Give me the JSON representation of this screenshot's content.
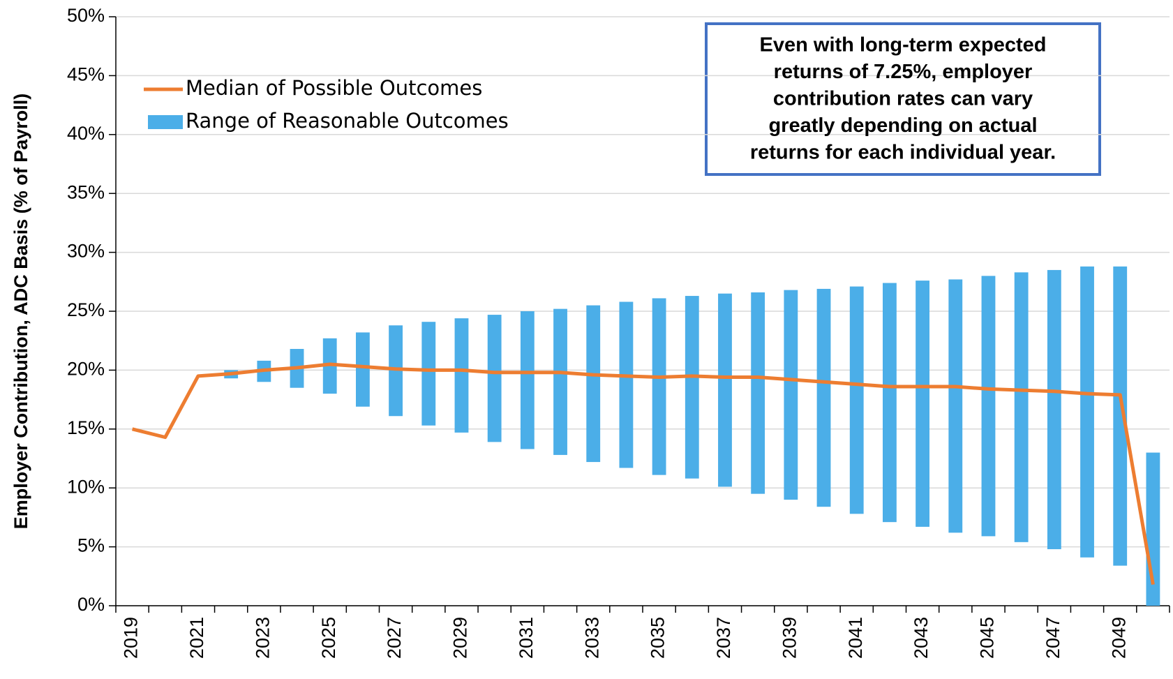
{
  "chart_data": {
    "type": "combo",
    "y_label": "Employer Contribution, ADC Basis (% of Payroll)",
    "annotation": [
      "Even with long-term expected",
      "returns of 7.25%, employer",
      "contribution rates can vary",
      "greatly depending on actual",
      "returns for each individual year."
    ],
    "categories": [
      "2019",
      null,
      "2021",
      null,
      "2023",
      null,
      "2025",
      null,
      "2027",
      null,
      "2029",
      null,
      "2031",
      null,
      "2033",
      null,
      "2035",
      null,
      "2037",
      null,
      "2039",
      null,
      "2041",
      null,
      "2043",
      null,
      "2045",
      null,
      "2047",
      null,
      "2049",
      null
    ],
    "ylim": [
      0,
      50
    ],
    "yticks": [
      {
        "value": 0,
        "label": "0%"
      },
      {
        "value": 5,
        "label": "5%"
      },
      {
        "value": 10,
        "label": "10%"
      },
      {
        "value": 15,
        "label": "15%"
      },
      {
        "value": 20,
        "label": "20%"
      },
      {
        "value": 25,
        "label": "25%"
      },
      {
        "value": 30,
        "label": "30%"
      },
      {
        "value": 35,
        "label": "35%"
      },
      {
        "value": 40,
        "label": "40%"
      },
      {
        "value": 45,
        "label": "45%"
      },
      {
        "value": 50,
        "label": "50%"
      }
    ],
    "grid": true,
    "series": [
      {
        "name": "Median of Possible Outcomes",
        "type": "line",
        "color": "#ed7d31",
        "values": [
          15.0,
          14.3,
          19.5,
          19.7,
          20.0,
          20.2,
          20.5,
          20.3,
          20.1,
          20.0,
          20.0,
          19.8,
          19.8,
          19.8,
          19.6,
          19.5,
          19.4,
          19.5,
          19.4,
          19.4,
          19.2,
          19.0,
          18.8,
          18.6,
          18.6,
          18.6,
          18.4,
          18.3,
          18.2,
          18.0,
          17.9,
          1.8
        ]
      },
      {
        "name": "Range of Reasonable Outcomes",
        "type": "floating-bar",
        "color": "#4baee8",
        "values": [
          null,
          null,
          null,
          20.0,
          20.8,
          21.8,
          22.7,
          23.2,
          23.8,
          24.1,
          24.4,
          24.7,
          25.0,
          25.2,
          25.5,
          25.8,
          26.1,
          26.3,
          26.5,
          26.6,
          26.8,
          26.9,
          27.1,
          27.4,
          27.6,
          27.7,
          28.0,
          28.3,
          28.5,
          28.8,
          28.8,
          13.0
        ],
        "low": [
          null,
          null,
          null,
          19.3,
          19.0,
          18.5,
          18.0,
          16.9,
          16.1,
          15.3,
          14.7,
          13.9,
          13.3,
          12.8,
          12.2,
          11.7,
          11.1,
          10.8,
          10.1,
          9.5,
          9.0,
          8.4,
          7.8,
          7.1,
          6.7,
          6.2,
          5.9,
          5.4,
          4.8,
          4.1,
          3.4,
          0
        ]
      }
    ]
  }
}
